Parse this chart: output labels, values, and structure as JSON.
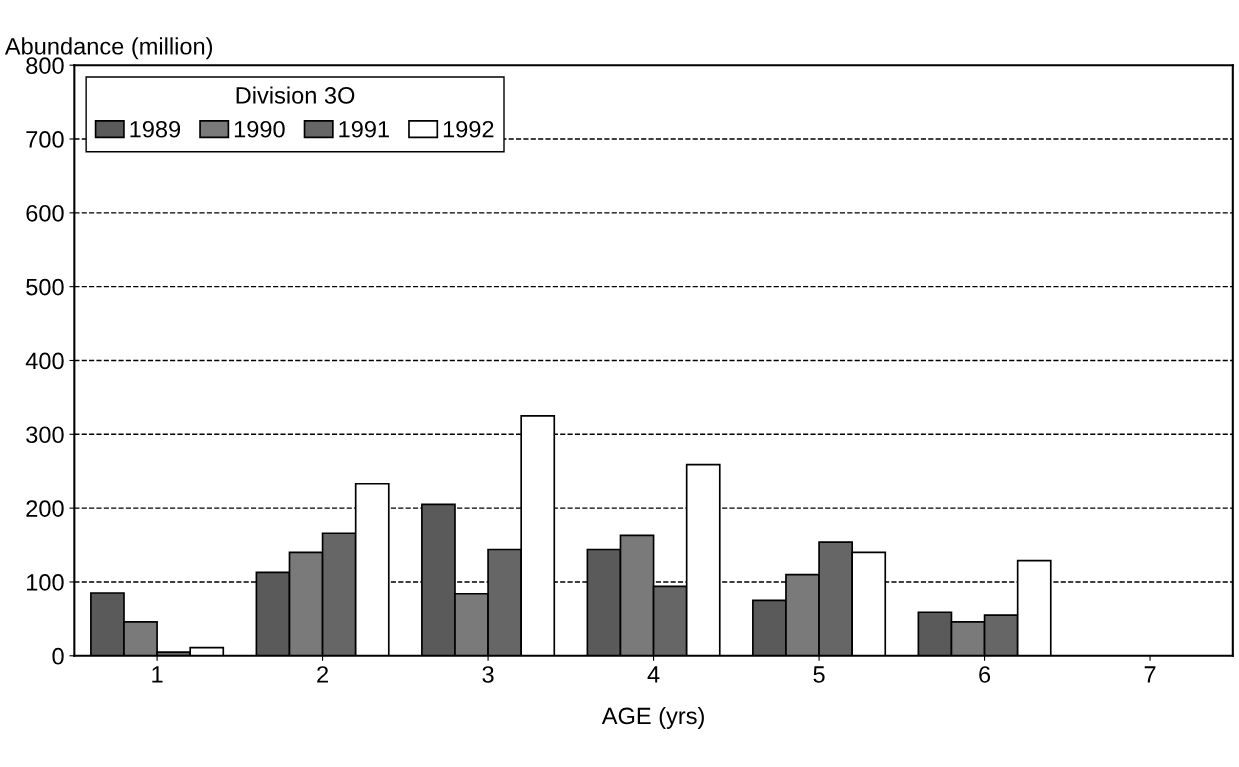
{
  "chart_data": {
    "type": "bar",
    "ylabel": "Abundance (million)",
    "xlabel": "AGE (yrs)",
    "legend_title": "Division 3O",
    "categories": [
      "1",
      "2",
      "3",
      "4",
      "5",
      "6",
      "7"
    ],
    "series": [
      {
        "name": "1989",
        "color": "#5a5a5a",
        "values": [
          85,
          113,
          205,
          144,
          75,
          59,
          null
        ]
      },
      {
        "name": "1990",
        "color": "#7a7a7a",
        "values": [
          46,
          140,
          84,
          163,
          110,
          46,
          null
        ]
      },
      {
        "name": "1991",
        "color": "#666666",
        "values": [
          5,
          166,
          144,
          94,
          154,
          55,
          null
        ]
      },
      {
        "name": "1992",
        "color": "#ffffff",
        "values": [
          11,
          233,
          325,
          259,
          140,
          129,
          null
        ]
      }
    ],
    "ylim": [
      0,
      800
    ],
    "yticks": [
      0,
      100,
      200,
      300,
      400,
      500,
      600,
      700,
      800
    ],
    "grid": "y",
    "legend": "top left"
  }
}
